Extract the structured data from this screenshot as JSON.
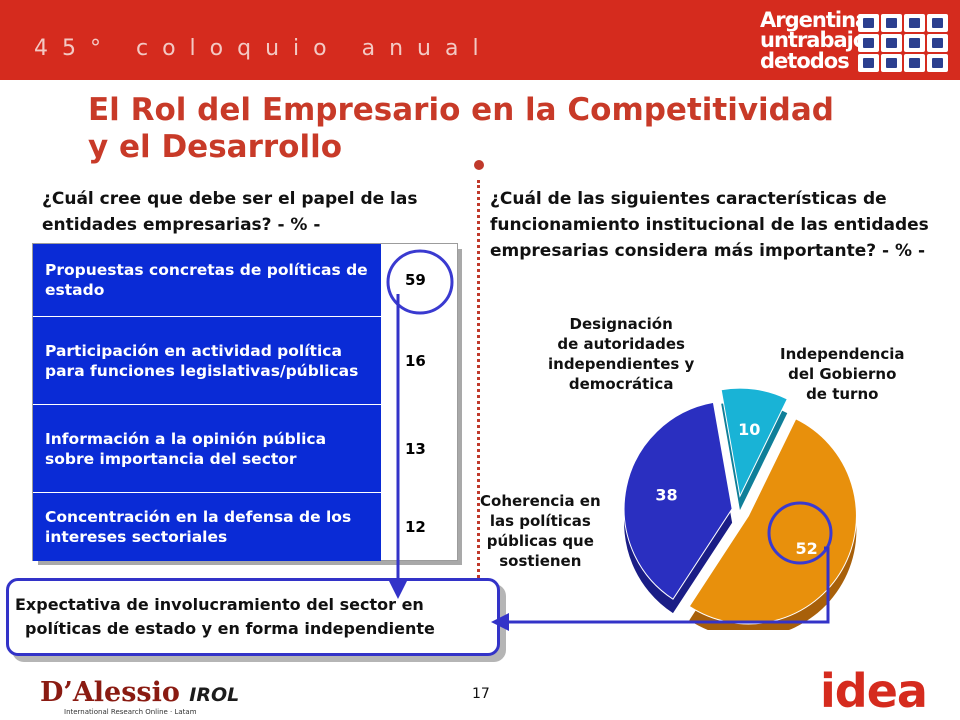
{
  "header": {
    "event_text": "45° coloquio anual",
    "brand_lines": [
      "Argentina",
      "untrabajo",
      "detodos"
    ],
    "brand_icon_names": [
      "building-icon",
      "cart-icon",
      "anchor-icon",
      "factory-icon",
      "people-icon",
      "percent-icon",
      "road-icon",
      "worker-icon",
      "bus-icon",
      "cross-icon",
      "train-icon",
      "chart-icon"
    ],
    "accent_color": "#d52b1e"
  },
  "title": {
    "line1": "El Rol del Empresario en la Competitividad",
    "line2": "y el Desarrollo"
  },
  "left_panel": {
    "question": "¿Cuál cree que debe ser el papel de las entidades empresarias? - % -",
    "rows": [
      {
        "label": "Propuestas concretas de políticas de estado",
        "value": "59"
      },
      {
        "label": "Participación en actividad política para funciones legislativas/públicas",
        "value": "16"
      },
      {
        "label": "Información a la opinión pública sobre importancia del sector",
        "value": "13"
      },
      {
        "label": "Concentración en la defensa de los intereses sectoriales",
        "value": "12"
      }
    ],
    "label_bg_color": "#0a2bd6"
  },
  "summary": {
    "line1": "Expectativa de involucramiento del sector en",
    "line2": "políticas de estado y en forma independiente"
  },
  "right_panel": {
    "question": "¿Cuál de las siguientes características de funcionamiento institucional de las entidades empresarias considera más importante? - % -"
  },
  "chart_data": {
    "type": "pie",
    "title": "",
    "categories": [
      "Independencia del Gobierno de turno",
      "Coherencia en las políticas públicas que sostienen",
      "Designación de autoridades independientes y democrática"
    ],
    "values": [
      52,
      38,
      10
    ],
    "value_labels": [
      "52",
      "38",
      "10"
    ],
    "label_lines": [
      [
        "Independencia",
        "del Gobierno",
        "de turno"
      ],
      [
        "Coherencia en",
        "las políticas",
        "públicas que",
        "sostienen"
      ],
      [
        "Designación",
        "de autoridades",
        "independientes y",
        "democrática"
      ]
    ],
    "colors": [
      "#e8900c",
      "#2a2fc0",
      "#19b3d6"
    ],
    "exploded": true,
    "legend": "none"
  },
  "footer": {
    "dalessio_main": "D’Alessio",
    "dalessio_irol": "IROL",
    "dalessio_sub": "International Research Online · Latam",
    "page_number": "17",
    "idea_logo": "idea"
  }
}
